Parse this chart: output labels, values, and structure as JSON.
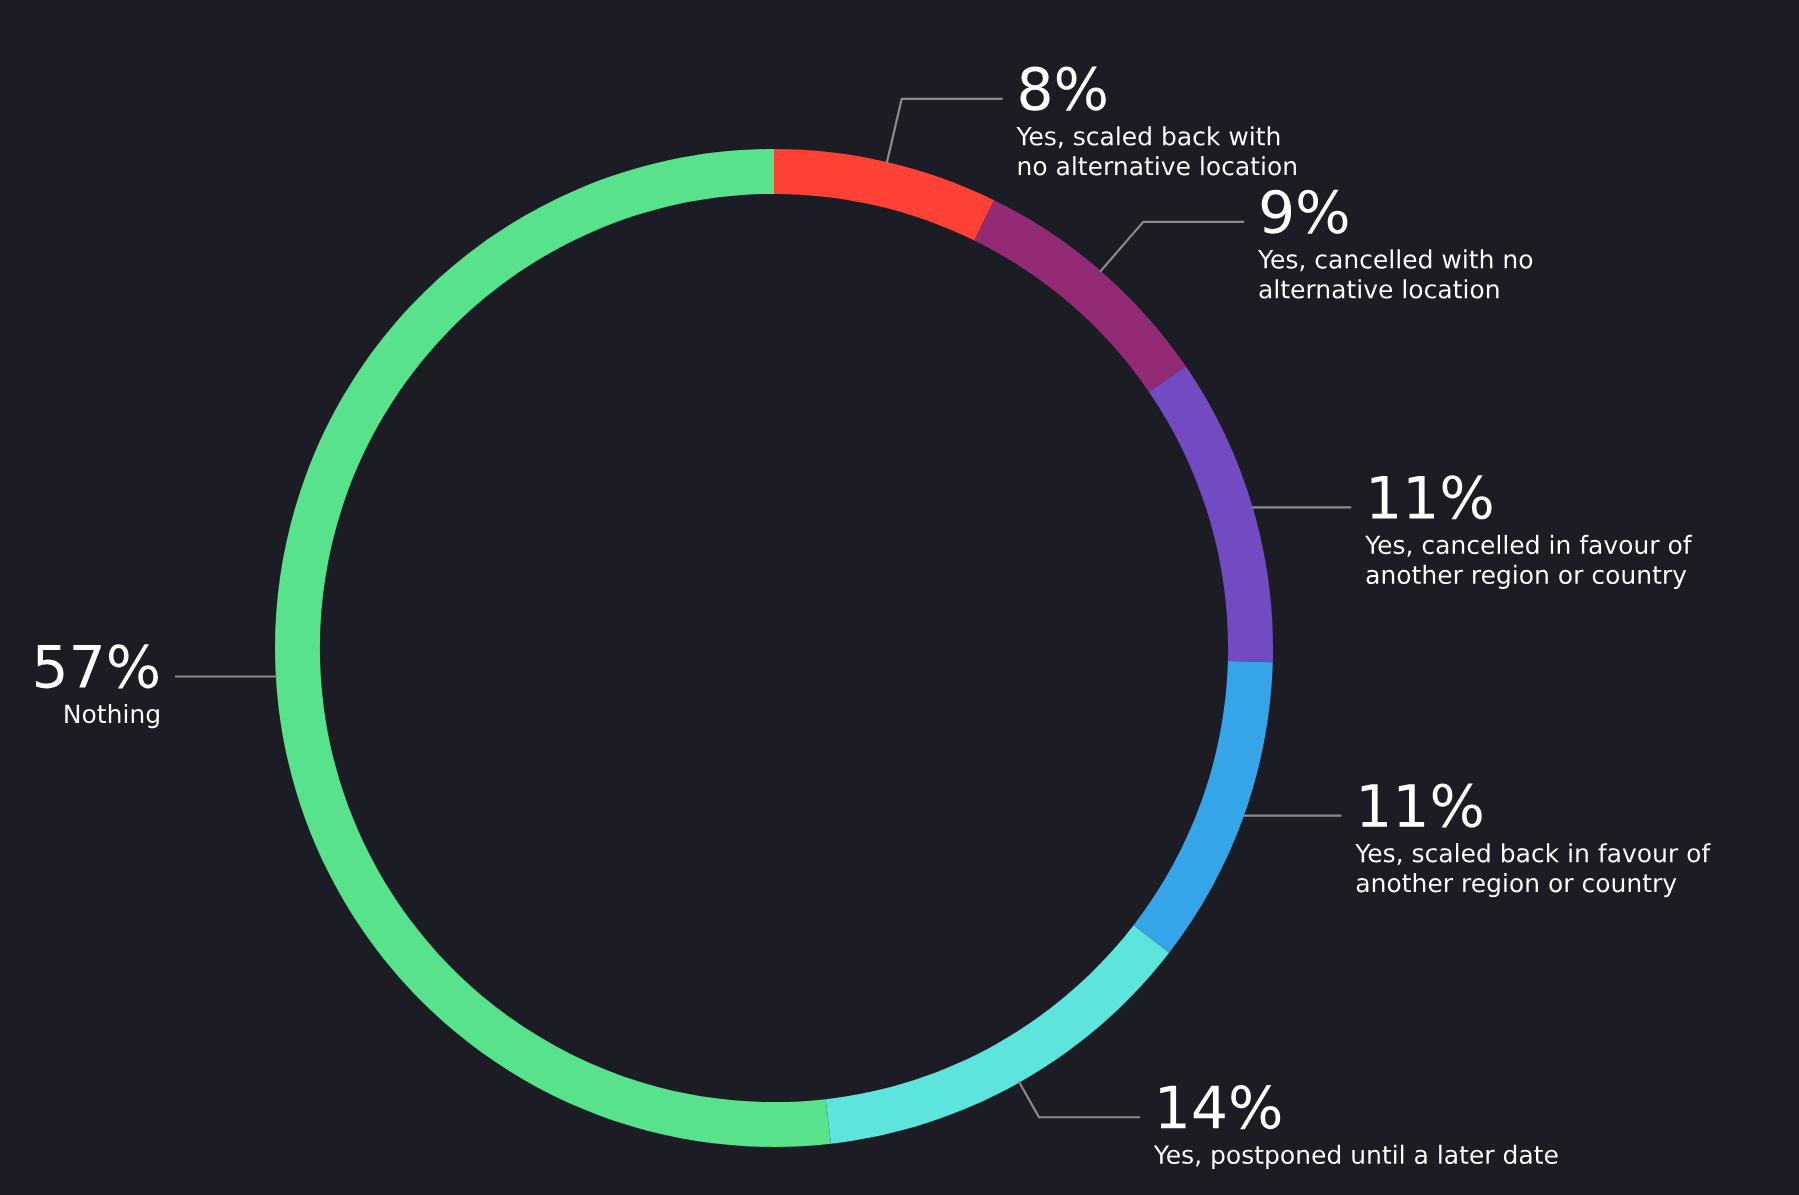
{
  "chart_data": {
    "type": "donut",
    "categories": [
      "Yes, scaled back with\nno alternative location",
      "Yes, cancelled with no\nalternative location",
      "Yes, cancelled in favour of\nanother region or country",
      "Yes, scaled back in favour of\nanother region or country",
      "Yes, postponed until a later date",
      "Nothing"
    ],
    "values": [
      8,
      9,
      11,
      11,
      14,
      57
    ],
    "colors": [
      "#ff4136",
      "#922b73",
      "#724bc3",
      "#35a4e8",
      "#5de5dd",
      "#57e28b"
    ],
    "value_labels": [
      "8%",
      "9%",
      "11%",
      "11%",
      "14%",
      "57%"
    ],
    "legend": false
  }
}
